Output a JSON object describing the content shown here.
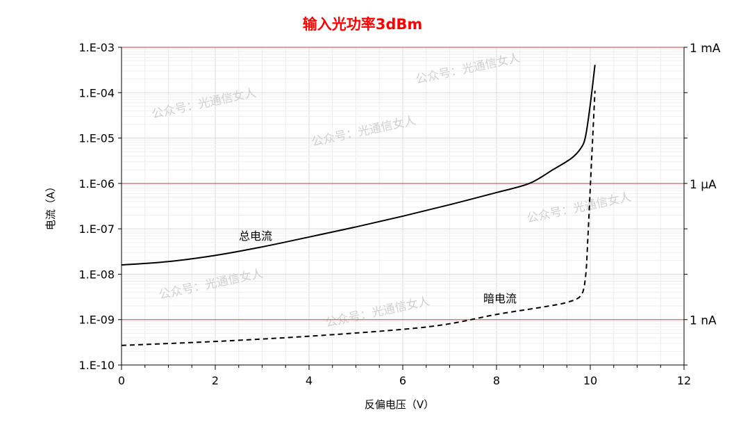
{
  "chart_data": {
    "type": "line",
    "title": "输入光功率3dBm",
    "title_color": "#ff0000",
    "xlabel": "反偏电压（V）",
    "ylabel": "电流（A）",
    "xlim": [
      0,
      12
    ],
    "ylim": [
      1e-10,
      0.001
    ],
    "y_scale": "log",
    "grid": true,
    "x_ticks": [
      "0",
      "2",
      "4",
      "6",
      "8",
      "10",
      "12"
    ],
    "y_ticks": [
      "1.E-10",
      "1.E-09",
      "1.E-08",
      "1.E-07",
      "1.E-06",
      "1.E-05",
      "1.E-04",
      "1.E-03"
    ],
    "reference_lines": [
      {
        "value": 0.001,
        "label": "1 mA"
      },
      {
        "value": 1e-06,
        "label": "1 μA"
      },
      {
        "value": 1e-09,
        "label": "1 nA"
      }
    ],
    "reference_color": "#e06060",
    "series": [
      {
        "name": "总电流",
        "style": "solid",
        "x": [
          0,
          1,
          2,
          3,
          4,
          5,
          6,
          7,
          8,
          8.7,
          9.2,
          9.6,
          9.8,
          9.9,
          10.0,
          10.1
        ],
        "y": [
          1.6e-08,
          1.9e-08,
          2.6e-08,
          4e-08,
          6.6e-08,
          1.1e-07,
          1.9e-07,
          3.4e-07,
          6.3e-07,
          1e-06,
          2e-06,
          3.6e-06,
          6e-06,
          1.1e-05,
          5.5e-05,
          0.00041
        ]
      },
      {
        "name": "暗电流",
        "style": "dashed",
        "x": [
          0,
          2,
          4,
          6,
          7,
          8,
          9,
          9.5,
          9.8,
          9.9,
          9.95,
          10.0,
          10.05,
          10.1
        ],
        "y": [
          2.7e-10,
          3.3e-10,
          4.3e-10,
          6.1e-10,
          8.1e-10,
          1.3e-09,
          1.9e-09,
          2.4e-09,
          3.4e-09,
          9e-09,
          6.8e-08,
          8e-07,
          9.5e-06,
          0.00011
        ]
      }
    ]
  },
  "watermark": "公众号：光通信女人"
}
